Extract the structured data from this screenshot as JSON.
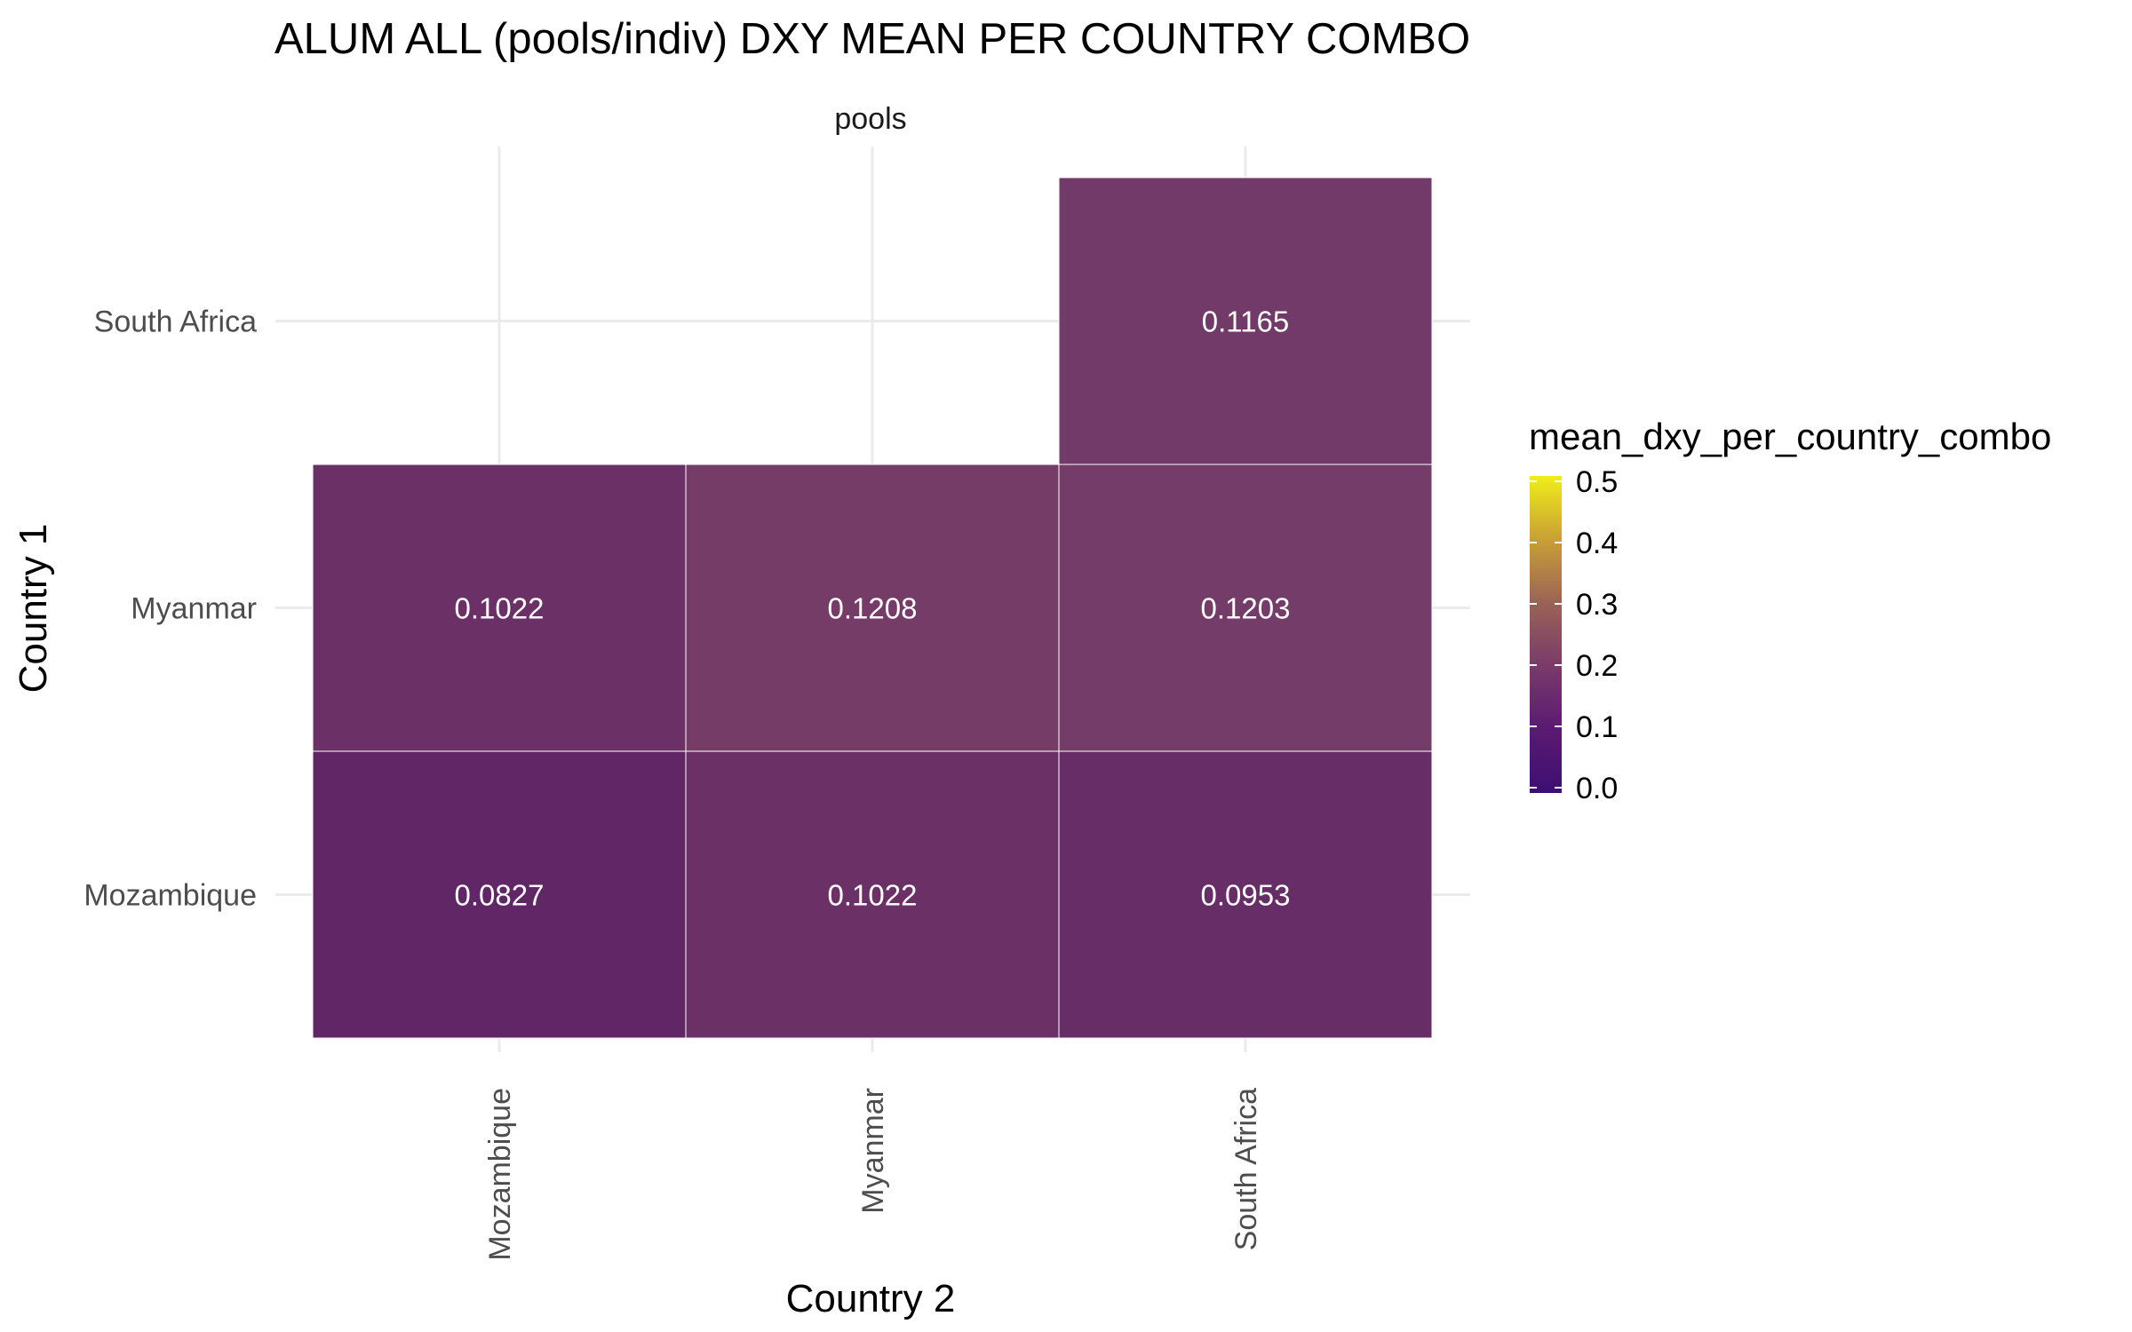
{
  "chart_data": {
    "type": "heatmap",
    "title": "ALUM ALL (pools/indiv) DXY MEAN PER COUNTRY COMBO",
    "facet_label": "pools",
    "xlabel": "Country 2",
    "ylabel": "Country 1",
    "x_categories": [
      "Mozambique",
      "Myanmar",
      "South Africa"
    ],
    "y_categories": [
      "Mozambique",
      "Myanmar",
      "South Africa"
    ],
    "cells": [
      {
        "x": "Mozambique",
        "y": "Mozambique",
        "value": 0.0827,
        "label": "0.0827"
      },
      {
        "x": "Myanmar",
        "y": "Mozambique",
        "value": 0.1022,
        "label": "0.1022"
      },
      {
        "x": "South Africa",
        "y": "Mozambique",
        "value": 0.0953,
        "label": "0.0953"
      },
      {
        "x": "Mozambique",
        "y": "Myanmar",
        "value": 0.1022,
        "label": "0.1022"
      },
      {
        "x": "Myanmar",
        "y": "Myanmar",
        "value": 0.1208,
        "label": "0.1208"
      },
      {
        "x": "South Africa",
        "y": "Myanmar",
        "value": 0.1203,
        "label": "0.1203"
      },
      {
        "x": "South Africa",
        "y": "South Africa",
        "value": 0.1165,
        "label": "0.1165"
      }
    ],
    "legend": {
      "title": "mean_dxy_per_country_combo",
      "limits": [
        0,
        0.5
      ],
      "ticks": [
        "0.0",
        "0.1",
        "0.2",
        "0.3",
        "0.4",
        "0.5"
      ],
      "colormap": "plasma"
    },
    "grid": true,
    "legend_position": "right",
    "colors": {
      "grid": "#ebebeb",
      "cell_border": "#ffffff",
      "cell_text": "#ffffff",
      "tick_text": "#4d4d4d",
      "plasma_stops": [
        "#0d0887",
        "#6a00a8",
        "#b12a90",
        "#e16462",
        "#fca636",
        "#f0f921"
      ]
    }
  }
}
